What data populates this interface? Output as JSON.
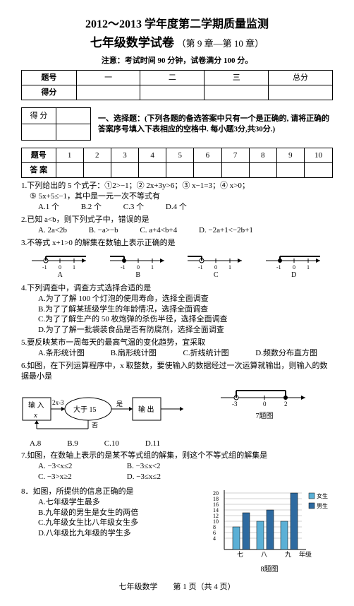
{
  "header": {
    "title1": "2012～2013 学年度第二学期质量监测",
    "title2_main": "七年级数学试卷",
    "title2_sub": "（第 9 章—第 10 章）",
    "note": "注意：考试时间 90 分钟，试卷满分 100 分。"
  },
  "score_table": {
    "rows": [
      "题号",
      "得分"
    ],
    "cols": [
      "一",
      "二",
      "三",
      "总分"
    ]
  },
  "section1": {
    "small_score": [
      "得 分",
      ""
    ],
    "heading": "一、选择题：(下列各题的备选答案中只有一个是正确的, 请将正确的答案序号填入下表相应的空格中. 每小题3分,共30分.)"
  },
  "answer_table": {
    "row_labels": [
      "题号",
      "答 案"
    ],
    "nums": [
      "1",
      "2",
      "3",
      "4",
      "5",
      "6",
      "7",
      "8",
      "9",
      "10"
    ]
  },
  "q1": {
    "stem": "1.下列给出的 5 个式子：①2>−1；② 2x+3y>6；③ x−1=3；④ x>0；",
    "stem2": "⑤ 5x+5≤−1，其中是一元一次不等式有",
    "opts": [
      "A.1 个",
      "B.2 个",
      "C.3 个",
      "D.4 个"
    ]
  },
  "q2": {
    "stem": "2.已知 a<b，则下列式子中，错误的是",
    "opts": [
      "A. 2a<2b",
      "B. −a>−b",
      "C. a+4<b+4",
      "D. −2a+1<−2b+1"
    ]
  },
  "q3": {
    "stem": "3.不等式 x+1>0 的解集在数轴上表示正确的是",
    "labels": [
      "A",
      "B",
      "C",
      "D"
    ],
    "ticks": [
      "-1",
      "0",
      "1"
    ]
  },
  "q4": {
    "stem": "4.下列调查中，调查方式选择合适的是",
    "opts": [
      "A.为了了解 100 个灯泡的使用寿命，选择全面调查",
      "B.为了了解某班级学生的年龄情况，选择全面调查",
      "C.为了了解生产的 50 枚炮弹的杀伤半径，选择全面调查",
      "D.为了了解一批袋装食品是否有防腐剂，选择全面调查"
    ]
  },
  "q5": {
    "stem": "5.要反映某市一周每天的最高气温的变化趋势，宜采取",
    "opts": [
      "A.条形统计图",
      "B.扇形统计图",
      "C.折线统计图",
      "D.频数分布直方图"
    ]
  },
  "q6": {
    "stem": "6.如图，在下列运算程序中，x 取整数，要使输入的数据经过一次运算就输出，则输入的数据最小是",
    "flow": {
      "in": "输 入",
      "x": "x",
      "op": "2x-3",
      "cmp": "大于 15",
      "yes": "是",
      "no": "否",
      "out": "输 出"
    },
    "opts": [
      "A.8",
      "B.9",
      "C.10",
      "D.11"
    ],
    "nl_label": "7题图",
    "axis_ticks": [
      "-3",
      "0",
      "2"
    ]
  },
  "q7": {
    "stem": "7.如图，在数轴上表示的是某不等式组的解集，则这个不等式组的解集是",
    "opts": [
      "A. −3<x≤2",
      "B. −3≤x<2",
      "C. −3>x≥2",
      "D. −3≤x≤2"
    ]
  },
  "q8": {
    "stem": "8．如图，所提供的信息正确的是",
    "opts": [
      "A.七年级学生最多",
      "B.九年级的男生是女生的两倍",
      "C.九年级女生比八年级女生多",
      "D.八年级比九年级的学生多"
    ],
    "chart": {
      "y_ticks": [
        4,
        6,
        8,
        10,
        12,
        14,
        16,
        18,
        20
      ],
      "categories": [
        "七",
        "八",
        "九"
      ],
      "x_label": "年级",
      "legend": [
        "女生",
        "男生"
      ],
      "series": {
        "female": [
          8,
          10,
          10
        ],
        "male": [
          13,
          14,
          20
        ]
      },
      "colors": {
        "female": "#5bb0d6",
        "male": "#2e6aa0",
        "grid": "#d0d0d0",
        "axis": "#000"
      },
      "label": "8题图"
    }
  },
  "footer": "七年级数学　　第 1 页（共 4 页）"
}
